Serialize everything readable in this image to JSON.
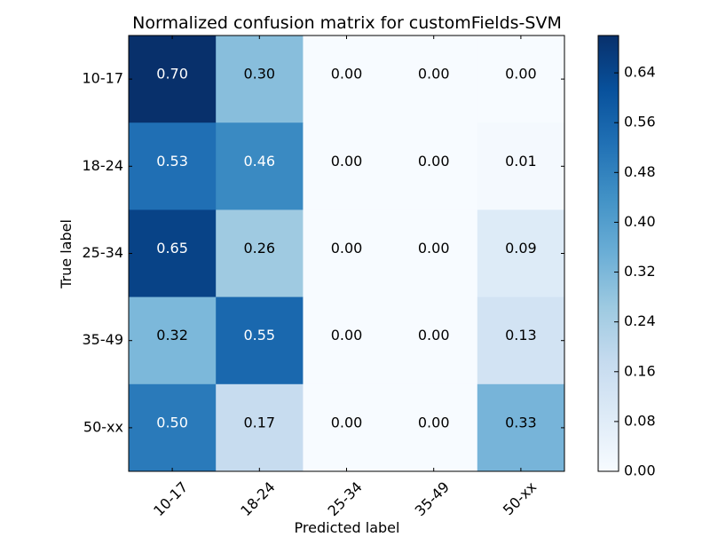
{
  "chart_data": {
    "type": "heatmap",
    "title": "Normalized confusion matrix for customFields-SVM",
    "xlabel": "Predicted label",
    "ylabel": "True label",
    "x_categories": [
      "10-17",
      "18-24",
      "25-34",
      "35-49",
      "50-xx"
    ],
    "y_categories": [
      "10-17",
      "18-24",
      "25-34",
      "35-49",
      "50-xx"
    ],
    "values": [
      [
        0.7,
        0.3,
        0.0,
        0.0,
        0.0
      ],
      [
        0.53,
        0.46,
        0.0,
        0.0,
        0.01
      ],
      [
        0.65,
        0.26,
        0.0,
        0.0,
        0.09
      ],
      [
        0.32,
        0.55,
        0.0,
        0.0,
        0.13
      ],
      [
        0.5,
        0.17,
        0.0,
        0.0,
        0.33
      ]
    ],
    "cell_labels": [
      [
        "0.70",
        "0.30",
        "0.00",
        "0.00",
        "0.00"
      ],
      [
        "0.53",
        "0.46",
        "0.00",
        "0.00",
        "0.01"
      ],
      [
        "0.65",
        "0.26",
        "0.00",
        "0.00",
        "0.09"
      ],
      [
        "0.32",
        "0.55",
        "0.00",
        "0.00",
        "0.13"
      ],
      [
        "0.50",
        "0.17",
        "0.00",
        "0.00",
        "0.33"
      ]
    ],
    "colormap": "Blues",
    "colormap_stops": [
      "#f7fbff",
      "#deebf7",
      "#c6dbef",
      "#9ecae1",
      "#6baed6",
      "#4292c6",
      "#2171b5",
      "#08519c",
      "#08306b"
    ],
    "color_range": [
      0.0,
      0.7
    ],
    "colorbar_ticks": [
      0.0,
      0.08,
      0.16,
      0.24,
      0.32,
      0.4,
      0.48,
      0.56,
      0.64
    ],
    "colorbar_tick_labels": [
      "0.00",
      "0.08",
      "0.16",
      "0.24",
      "0.32",
      "0.40",
      "0.48",
      "0.56",
      "0.64"
    ],
    "x_tick_rotation": 45,
    "grid": false
  }
}
